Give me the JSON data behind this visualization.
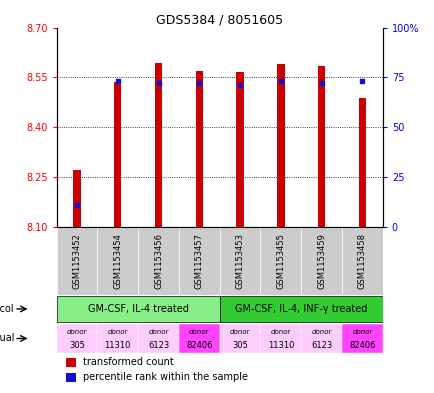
{
  "title": "GDS5384 / 8051605",
  "samples": [
    "GSM1153452",
    "GSM1153454",
    "GSM1153456",
    "GSM1153457",
    "GSM1153453",
    "GSM1153455",
    "GSM1153459",
    "GSM1153458"
  ],
  "transformed_count": [
    8.27,
    8.535,
    8.593,
    8.568,
    8.565,
    8.59,
    8.583,
    8.487
  ],
  "percentile_rank": [
    11,
    73,
    72,
    72,
    71,
    73,
    72,
    73
  ],
  "ylim_left": [
    8.1,
    8.7
  ],
  "ylim_right": [
    0,
    100
  ],
  "yticks_left": [
    8.1,
    8.25,
    8.4,
    8.55,
    8.7
  ],
  "yticks_right": [
    0,
    25,
    50,
    75,
    100
  ],
  "bar_color": "#cc0000",
  "dot_color": "#1111cc",
  "protocol_labels": [
    "GM-CSF, IL-4 treated",
    "GM-CSF, IL-4, INF-γ treated"
  ],
  "protocol_color1": "#88ee88",
  "protocol_color2": "#33cc33",
  "individual_colors": [
    "#ffccff",
    "#ffccff",
    "#ffccff",
    "#ff44ff",
    "#ffccff",
    "#ffccff",
    "#ffccff",
    "#ff44ff"
  ],
  "sample_bg_color": "#cccccc",
  "legend_red_label": "transformed count",
  "legend_blue_label": "percentile rank within the sample"
}
